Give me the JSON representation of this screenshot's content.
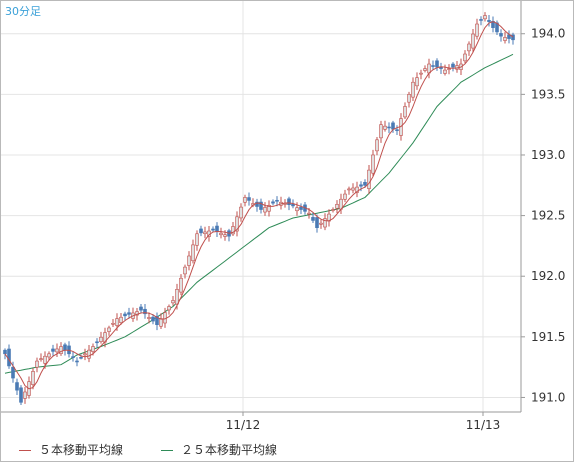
{
  "chart_data": {
    "type": "candlestick",
    "timeframe_label": "30分足",
    "x_tick_labels": [
      "11/12",
      "11/13"
    ],
    "y_ticks": [
      191.0,
      191.5,
      192.0,
      192.5,
      193.0,
      193.5,
      194.0
    ],
    "ylim": [
      190.88,
      194.27
    ],
    "grid": true,
    "y_axis_position": "right",
    "legend_position": "bottom-left",
    "series": [
      {
        "name": "５本移動平均線",
        "color": "#c0504d"
      },
      {
        "name": "２５本移動平均線",
        "color": "#2e8b57"
      }
    ],
    "up_color": "#e0e0e0",
    "down_color": "#4a7ab4",
    "close_points": [
      {
        "i": 0,
        "close": 191.36
      },
      {
        "i": 4,
        "close": 190.96
      },
      {
        "i": 8,
        "close": 191.3
      },
      {
        "i": 14,
        "close": 191.42
      },
      {
        "i": 18,
        "close": 191.3
      },
      {
        "i": 22,
        "close": 191.42
      },
      {
        "i": 28,
        "close": 191.65
      },
      {
        "i": 34,
        "close": 191.72
      },
      {
        "i": 38,
        "close": 191.6
      },
      {
        "i": 42,
        "close": 191.8
      },
      {
        "i": 48,
        "close": 192.35
      },
      {
        "i": 52,
        "close": 192.38
      },
      {
        "i": 56,
        "close": 192.33
      },
      {
        "i": 60,
        "close": 192.65
      },
      {
        "i": 64,
        "close": 192.55
      },
      {
        "i": 68,
        "close": 192.62
      },
      {
        "i": 72,
        "close": 192.58
      },
      {
        "i": 76,
        "close": 192.52
      },
      {
        "i": 78,
        "close": 192.4
      },
      {
        "i": 82,
        "close": 192.55
      },
      {
        "i": 86,
        "close": 192.72
      },
      {
        "i": 90,
        "close": 192.75
      },
      {
        "i": 94,
        "close": 193.25
      },
      {
        "i": 98,
        "close": 193.2
      },
      {
        "i": 102,
        "close": 193.6
      },
      {
        "i": 106,
        "close": 193.75
      },
      {
        "i": 110,
        "close": 193.7
      },
      {
        "i": 114,
        "close": 193.75
      },
      {
        "i": 118,
        "close": 194.08
      },
      {
        "i": 120,
        "close": 194.15
      },
      {
        "i": 122,
        "close": 194.05
      },
      {
        "i": 124,
        "close": 193.98
      },
      {
        "i": 127,
        "close": 193.95
      }
    ],
    "ma25_points": [
      {
        "i": 0,
        "value": 191.2
      },
      {
        "i": 8,
        "value": 191.25
      },
      {
        "i": 14,
        "value": 191.27
      },
      {
        "i": 18,
        "value": 191.35
      },
      {
        "i": 24,
        "value": 191.42
      },
      {
        "i": 30,
        "value": 191.5
      },
      {
        "i": 36,
        "value": 191.62
      },
      {
        "i": 42,
        "value": 191.75
      },
      {
        "i": 48,
        "value": 191.95
      },
      {
        "i": 54,
        "value": 192.1
      },
      {
        "i": 60,
        "value": 192.25
      },
      {
        "i": 66,
        "value": 192.4
      },
      {
        "i": 72,
        "value": 192.48
      },
      {
        "i": 78,
        "value": 192.52
      },
      {
        "i": 84,
        "value": 192.56
      },
      {
        "i": 90,
        "value": 192.65
      },
      {
        "i": 96,
        "value": 192.85
      },
      {
        "i": 102,
        "value": 193.1
      },
      {
        "i": 108,
        "value": 193.4
      },
      {
        "i": 114,
        "value": 193.6
      },
      {
        "i": 120,
        "value": 193.72
      },
      {
        "i": 127,
        "value": 193.83
      }
    ]
  }
}
